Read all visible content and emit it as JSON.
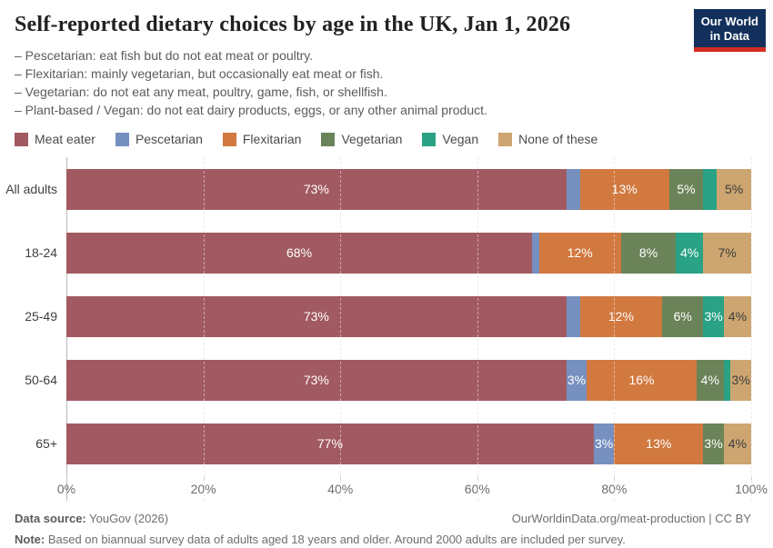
{
  "header": {
    "title": "Self-reported dietary choices by age in the UK, Jan 1, 2026",
    "subtitle_lines": [
      "– Pescetarian: eat fish but do not eat meat or poultry.",
      "– Flexitarian: mainly vegetarian, but occasionally eat meat or fish.",
      "– Vegetarian: do not eat any meat, poultry, game, fish, or shellfish.",
      "– Plant-based / Vegan: do not eat dairy products, eggs, or any other animal product."
    ],
    "logo": {
      "line1": "Our World",
      "line2": "in Data",
      "bg_color": "#12305B",
      "accent_color": "#D42B21"
    }
  },
  "chart_data": {
    "type": "bar",
    "stacked": true,
    "orientation": "horizontal",
    "unit": "%",
    "grid": true,
    "legend_position": "top",
    "categories": [
      "All adults",
      "18-24",
      "25-49",
      "50-64",
      "65+"
    ],
    "series": [
      {
        "name": "Meat eater",
        "color": "#A25A62",
        "label_text_color": "#FFFFFF",
        "values": [
          73,
          68,
          73,
          73,
          77
        ]
      },
      {
        "name": "Pescetarian",
        "color": "#7690BF",
        "label_text_color": "#FFFFFF",
        "values": [
          2,
          1,
          2,
          3,
          3
        ]
      },
      {
        "name": "Flexitarian",
        "color": "#D1793F",
        "label_text_color": "#FFFFFF",
        "values": [
          13,
          12,
          12,
          16,
          13
        ]
      },
      {
        "name": "Vegetarian",
        "color": "#6B8358",
        "label_text_color": "#FFFFFF",
        "values": [
          5,
          8,
          6,
          4,
          3
        ]
      },
      {
        "name": "Vegan",
        "color": "#29A285",
        "label_text_color": "#FFFFFF",
        "values": [
          2,
          4,
          3,
          1,
          0
        ]
      },
      {
        "name": "None of these",
        "color": "#CCA570",
        "label_text_color": "#3D3D3D",
        "values": [
          5,
          7,
          4,
          3,
          4
        ]
      }
    ],
    "x_ticks": [
      "0%",
      "20%",
      "40%",
      "60%",
      "80%",
      "100%"
    ],
    "xlim": [
      0,
      100
    ],
    "min_label_value": 3
  },
  "footer": {
    "source_label": "Data source:",
    "source_value": " YouGov (2026)",
    "link": "OurWorldinData.org/meat-production | CC BY",
    "note_label": "Note:",
    "note_value": " Based on biannual survey data of adults aged 18 years and older. Around 2000 adults are included per survey."
  }
}
